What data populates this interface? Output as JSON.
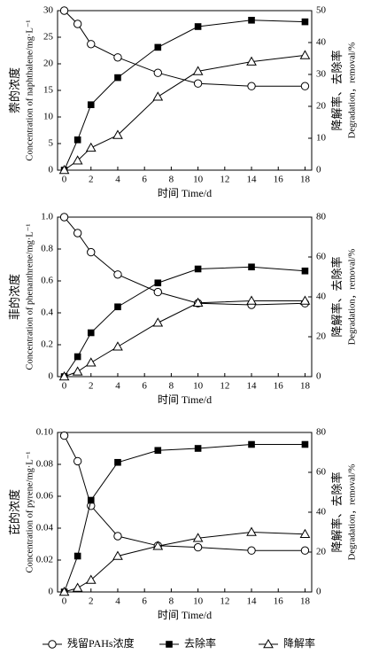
{
  "chart_data": [
    {
      "type": "line",
      "ylabel": [
        "萘的浓度",
        "Concentration of naphthalene/mg·L⁻¹"
      ],
      "y2label": [
        "降解率、去除率",
        "Degradation，removal/%"
      ],
      "xlabel": "时间 Time/d",
      "x": [
        0,
        1,
        2,
        4,
        7,
        10,
        14,
        18
      ],
      "xlim": [
        -0.5,
        18.5
      ],
      "xticks": [
        0,
        2,
        4,
        6,
        8,
        10,
        12,
        14,
        16,
        18
      ],
      "ylim": [
        0,
        30
      ],
      "yticks": [
        0,
        5,
        10,
        15,
        20,
        25,
        30
      ],
      "y2lim": [
        0,
        50
      ],
      "y2ticks": [
        0,
        10,
        20,
        30,
        40,
        50
      ],
      "series": [
        {
          "name": "残留PAHs浓度",
          "marker": "circle",
          "color": "#000000",
          "values": [
            30,
            27.5,
            23.7,
            21.2,
            18.3,
            16.3,
            15.8,
            15.8
          ]
        },
        {
          "name": "去除率",
          "marker": "square",
          "color": "#000000",
          "axis": "y2",
          "values": [
            0,
            9.5,
            20.5,
            29,
            38.5,
            45,
            47,
            46.5
          ]
        },
        {
          "name": "降解率",
          "marker": "triangle",
          "color": "#000000",
          "axis": "y2",
          "values": [
            0,
            3,
            7,
            11,
            23,
            31,
            34,
            36
          ]
        }
      ]
    },
    {
      "type": "line",
      "ylabel": [
        "菲的浓度",
        "Concentration of phenanthrene/mg·L⁻¹"
      ],
      "y2label": [
        "降解率、去除率",
        "Degradation，removal/%"
      ],
      "xlabel": "时间 Time/d",
      "x": [
        0,
        1,
        2,
        4,
        7,
        10,
        14,
        18
      ],
      "xlim": [
        -0.5,
        18.5
      ],
      "xticks": [
        0,
        2,
        4,
        6,
        8,
        10,
        12,
        14,
        16,
        18
      ],
      "ylim": [
        0,
        1
      ],
      "yticks": [
        0,
        0.2,
        0.4,
        0.6,
        0.8,
        {
          "value": 1,
          "label": "1.0"
        }
      ],
      "y2lim": [
        0,
        80
      ],
      "y2ticks": [
        0,
        20,
        40,
        60,
        80
      ],
      "series": [
        {
          "marker": "circle",
          "color": "#000000",
          "values": [
            1.0,
            0.9,
            0.78,
            0.64,
            0.53,
            0.46,
            0.45,
            0.46
          ]
        },
        {
          "marker": "square",
          "color": "#000000",
          "axis": "y2",
          "values": [
            0,
            10,
            22,
            35,
            47,
            54,
            55,
            53
          ]
        },
        {
          "marker": "triangle",
          "color": "#000000",
          "axis": "y2",
          "values": [
            0,
            2.5,
            7,
            15,
            27,
            37,
            38,
            38
          ]
        }
      ]
    },
    {
      "type": "line",
      "ylabel": [
        "芘的浓度",
        "Concentration of pyrene/mg·L⁻¹"
      ],
      "y2label": [
        "降解率、去除率",
        "Degradation，removal/%"
      ],
      "xlabel": "时间 Time/d",
      "x": [
        0,
        1,
        2,
        4,
        7,
        10,
        14,
        18
      ],
      "xlim": [
        -0.5,
        18.5
      ],
      "xticks": [
        0,
        2,
        4,
        6,
        8,
        10,
        12,
        14,
        16,
        18
      ],
      "ylim": [
        0,
        0.1
      ],
      "yticks": [
        0,
        0.02,
        0.04,
        0.06,
        0.08,
        {
          "value": 0.1,
          "label": "0.10"
        }
      ],
      "y2lim": [
        0,
        80
      ],
      "y2ticks": [
        0,
        20,
        40,
        60,
        80
      ],
      "series": [
        {
          "marker": "circle",
          "color": "#000000",
          "values": [
            0.098,
            0.082,
            0.054,
            0.035,
            0.029,
            0.028,
            0.026,
            0.026
          ]
        },
        {
          "marker": "square",
          "color": "#000000",
          "axis": "y2",
          "values": [
            0,
            18,
            46,
            65,
            71,
            72,
            74,
            74
          ]
        },
        {
          "marker": "triangle",
          "color": "#000000",
          "axis": "y2",
          "values": [
            0,
            2,
            6,
            18,
            23,
            27,
            30,
            29
          ]
        }
      ]
    }
  ]
}
